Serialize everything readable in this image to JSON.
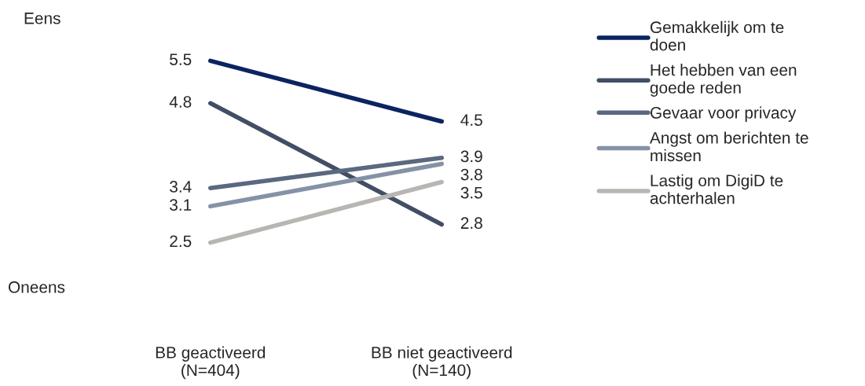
{
  "chart_data": {
    "type": "line",
    "categories": [
      "BB geactiveerd\n(N=404)",
      "BB niet geactiveerd\n(N=140)"
    ],
    "series": [
      {
        "name": "Gemakkelijk om te doen",
        "color": "#0b2461",
        "values": [
          5.5,
          4.5
        ]
      },
      {
        "name": "Het hebben van een goede reden",
        "color": "#414e65",
        "values": [
          4.8,
          2.8
        ]
      },
      {
        "name": "Gevaar voor privacy",
        "color": "#5a6880",
        "values": [
          3.4,
          3.9
        ]
      },
      {
        "name": "Angst om berichten te missen",
        "color": "#8592a6",
        "values": [
          3.1,
          3.8
        ]
      },
      {
        "name": "Lastig om DigiD te achterhalen",
        "color": "#b7b6b2",
        "values": [
          2.5,
          3.5
        ]
      }
    ],
    "annotations": [
      "Eens",
      "Oneens"
    ],
    "data_labels": true,
    "legend": "right",
    "grid": false,
    "marker": "none",
    "line_style": "solid"
  }
}
